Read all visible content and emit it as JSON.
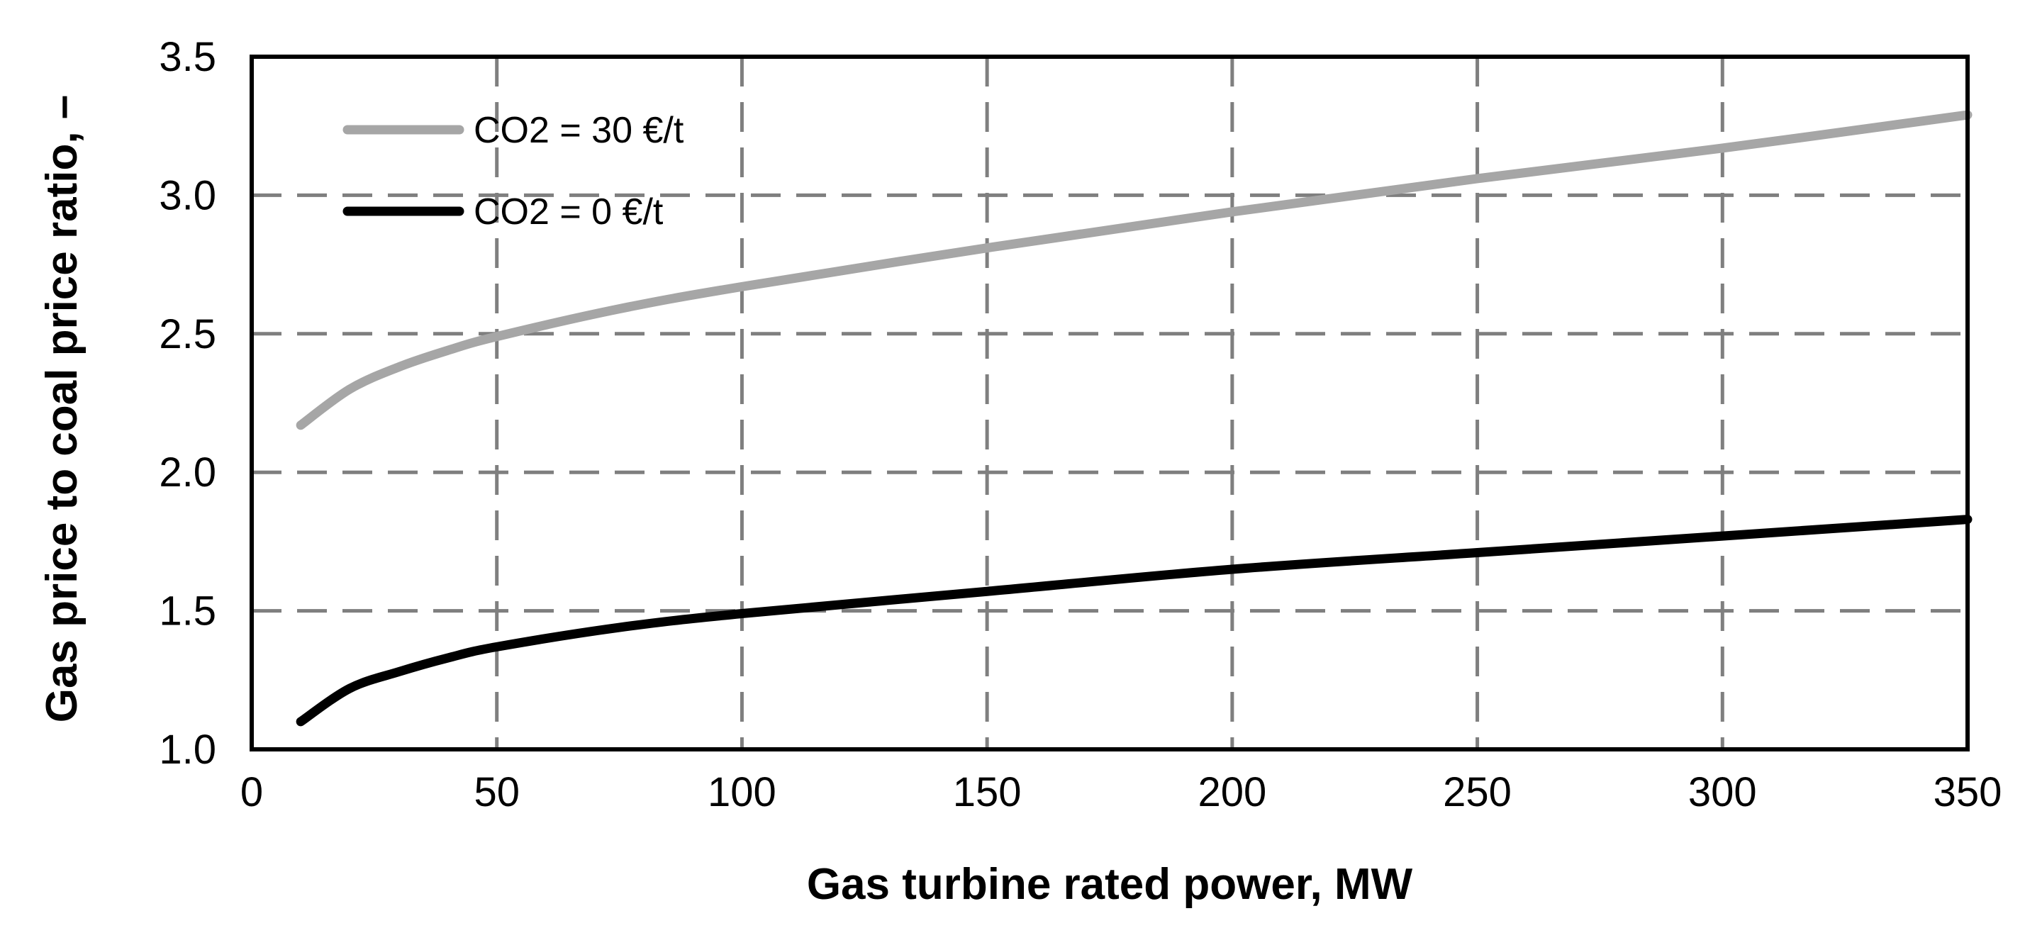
{
  "chart_data": {
    "type": "line",
    "title": "",
    "xlabel": "Gas turbine rated power, MW",
    "ylabel": "Gas price to coal price ratio, –",
    "xlim": [
      0,
      350
    ],
    "ylim": [
      1.0,
      3.5
    ],
    "xticks": [
      0,
      50,
      100,
      150,
      200,
      250,
      300,
      350
    ],
    "xtick_labels": [
      "0",
      "50",
      "100",
      "150",
      "200",
      "250",
      "300",
      "350"
    ],
    "yticks": [
      1.0,
      1.5,
      2.0,
      2.5,
      3.0,
      3.5
    ],
    "ytick_labels": [
      "1.0",
      "1.5",
      "2.0",
      "2.5",
      "3.0",
      "3.5"
    ],
    "grid": true,
    "legend_position": "top-left",
    "series": [
      {
        "name": "CO2 = 30 €/t",
        "color": "#a6a6a6",
        "x": [
          10,
          20,
          30,
          40,
          50,
          75,
          100,
          150,
          200,
          250,
          300,
          350
        ],
        "y": [
          2.17,
          2.3,
          2.38,
          2.44,
          2.49,
          2.59,
          2.67,
          2.81,
          2.94,
          3.06,
          3.17,
          3.29
        ]
      },
      {
        "name": "CO2 = 0 €/t",
        "color": "#000000",
        "x": [
          10,
          20,
          30,
          40,
          50,
          75,
          100,
          150,
          200,
          250,
          300,
          350
        ],
        "y": [
          1.1,
          1.22,
          1.28,
          1.33,
          1.37,
          1.44,
          1.49,
          1.57,
          1.65,
          1.71,
          1.77,
          1.83
        ]
      }
    ]
  }
}
